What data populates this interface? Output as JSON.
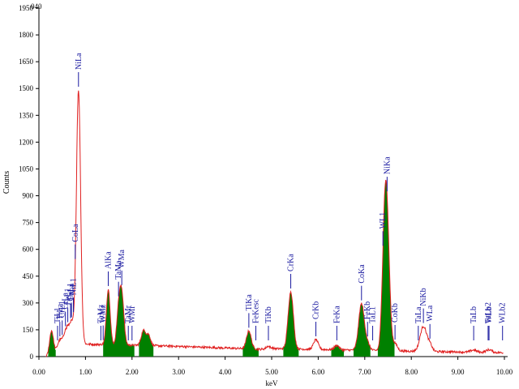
{
  "corner_label": "040",
  "chart_data": {
    "type": "line",
    "title": "",
    "xlabel": "keV",
    "ylabel": "Counts",
    "xlim": [
      0.0,
      10.0
    ],
    "ylim": [
      0,
      1950
    ],
    "grid": false,
    "x_ticks": [
      "0.00",
      "1.00",
      "2.00",
      "3.00",
      "4.00",
      "5.00",
      "6.00",
      "7.00",
      "8.00",
      "9.00",
      "10.00"
    ],
    "y_ticks": [
      "0",
      "150",
      "300",
      "450",
      "600",
      "750",
      "900",
      "1050",
      "1200",
      "1350",
      "1500",
      "1650",
      "1800",
      "1950"
    ],
    "colors": {
      "spectrum": "#e02020",
      "fill": "#008000",
      "marker": "#1a1aa0",
      "axis": "#000000"
    },
    "peaks": [
      {
        "center": 0.27,
        "height": 130,
        "width": 0.04,
        "filled": true
      },
      {
        "center": 0.45,
        "height": 55,
        "width": 0.05,
        "filled": false
      },
      {
        "center": 0.58,
        "height": 95,
        "width": 0.05,
        "filled": false
      },
      {
        "center": 0.7,
        "height": 120,
        "width": 0.05,
        "filled": false
      },
      {
        "center": 0.85,
        "height": 1420,
        "width": 0.045,
        "filled": false
      },
      {
        "center": 1.49,
        "height": 310,
        "width": 0.04,
        "filled": true
      },
      {
        "center": 1.71,
        "height": 170,
        "width": 0.04,
        "filled": true
      },
      {
        "center": 1.78,
        "height": 280,
        "width": 0.045,
        "filled": true
      },
      {
        "center": 2.25,
        "height": 85,
        "width": 0.05,
        "filled": true
      },
      {
        "center": 2.36,
        "height": 55,
        "width": 0.04,
        "filled": true
      },
      {
        "center": 4.51,
        "height": 100,
        "width": 0.05,
        "filled": true
      },
      {
        "center": 4.93,
        "height": 18,
        "width": 0.05,
        "filled": true
      },
      {
        "center": 5.41,
        "height": 320,
        "width": 0.055,
        "filled": true
      },
      {
        "center": 5.95,
        "height": 55,
        "width": 0.05,
        "filled": false
      },
      {
        "center": 6.4,
        "height": 25,
        "width": 0.05,
        "filled": true
      },
      {
        "center": 6.93,
        "height": 260,
        "width": 0.06,
        "filled": true
      },
      {
        "center": 7.06,
        "height": 35,
        "width": 0.05,
        "filled": true
      },
      {
        "center": 7.42,
        "height": 480,
        "width": 0.05,
        "filled": true
      },
      {
        "center": 7.48,
        "height": 640,
        "width": 0.055,
        "filled": true
      },
      {
        "center": 7.65,
        "height": 40,
        "width": 0.05,
        "filled": true
      },
      {
        "center": 8.26,
        "height": 140,
        "width": 0.07,
        "filled": false
      },
      {
        "center": 8.4,
        "height": 35,
        "width": 0.05,
        "filled": false
      },
      {
        "center": 9.34,
        "height": 12,
        "width": 0.06,
        "filled": false
      },
      {
        "center": 9.67,
        "height": 15,
        "width": 0.06,
        "filled": false
      }
    ],
    "background": {
      "low_energy_max": 55,
      "plateau": 62,
      "high_energy": 22
    },
    "markers": [
      {
        "label": "TiL1",
        "x": 0.4
      },
      {
        "label": "TiLa",
        "x": 0.45
      },
      {
        "label": "CrL1",
        "x": 0.5
      },
      {
        "label": "CrLa",
        "x": 0.57
      },
      {
        "label": "FeL1",
        "x": 0.62
      },
      {
        "label": "FeLa",
        "x": 0.7
      },
      {
        "label": "CoL1",
        "x": 0.68
      },
      {
        "label": "CoLa",
        "x": 0.78
      },
      {
        "label": "NiL1",
        "x": 0.74
      },
      {
        "label": "NiLa",
        "x": 0.85
      },
      {
        "label": "TaMz",
        "x": 1.33
      },
      {
        "label": "WMz",
        "x": 1.38
      },
      {
        "label": "AlKa",
        "x": 1.49
      },
      {
        "label": "TaMa",
        "x": 1.71
      },
      {
        "label": "WMa",
        "x": 1.78
      },
      {
        "label": "TaMr",
        "x": 1.92
      },
      {
        "label": "WMr",
        "x": 2.0
      },
      {
        "label": "TiKa",
        "x": 4.51
      },
      {
        "label": "FeKesc",
        "x": 4.66
      },
      {
        "label": "TiKb",
        "x": 4.93
      },
      {
        "label": "CrKa",
        "x": 5.41
      },
      {
        "label": "CrKb",
        "x": 5.95
      },
      {
        "label": "FeKa",
        "x": 6.4
      },
      {
        "label": "CoKa",
        "x": 6.93
      },
      {
        "label": "FeKb",
        "x": 7.06
      },
      {
        "label": "TaL1",
        "x": 7.17
      },
      {
        "label": "WL1",
        "x": 7.39
      },
      {
        "label": "NiKa",
        "x": 7.48
      },
      {
        "label": "CoKb",
        "x": 7.65
      },
      {
        "label": "TaLa",
        "x": 8.15
      },
      {
        "label": "NiKb",
        "x": 8.26
      },
      {
        "label": "WLa",
        "x": 8.4
      },
      {
        "label": "TaLb",
        "x": 9.34
      },
      {
        "label": "TaLb2",
        "x": 9.65
      },
      {
        "label": "WLb",
        "x": 9.67
      },
      {
        "label": "WLb2",
        "x": 9.96
      }
    ]
  }
}
